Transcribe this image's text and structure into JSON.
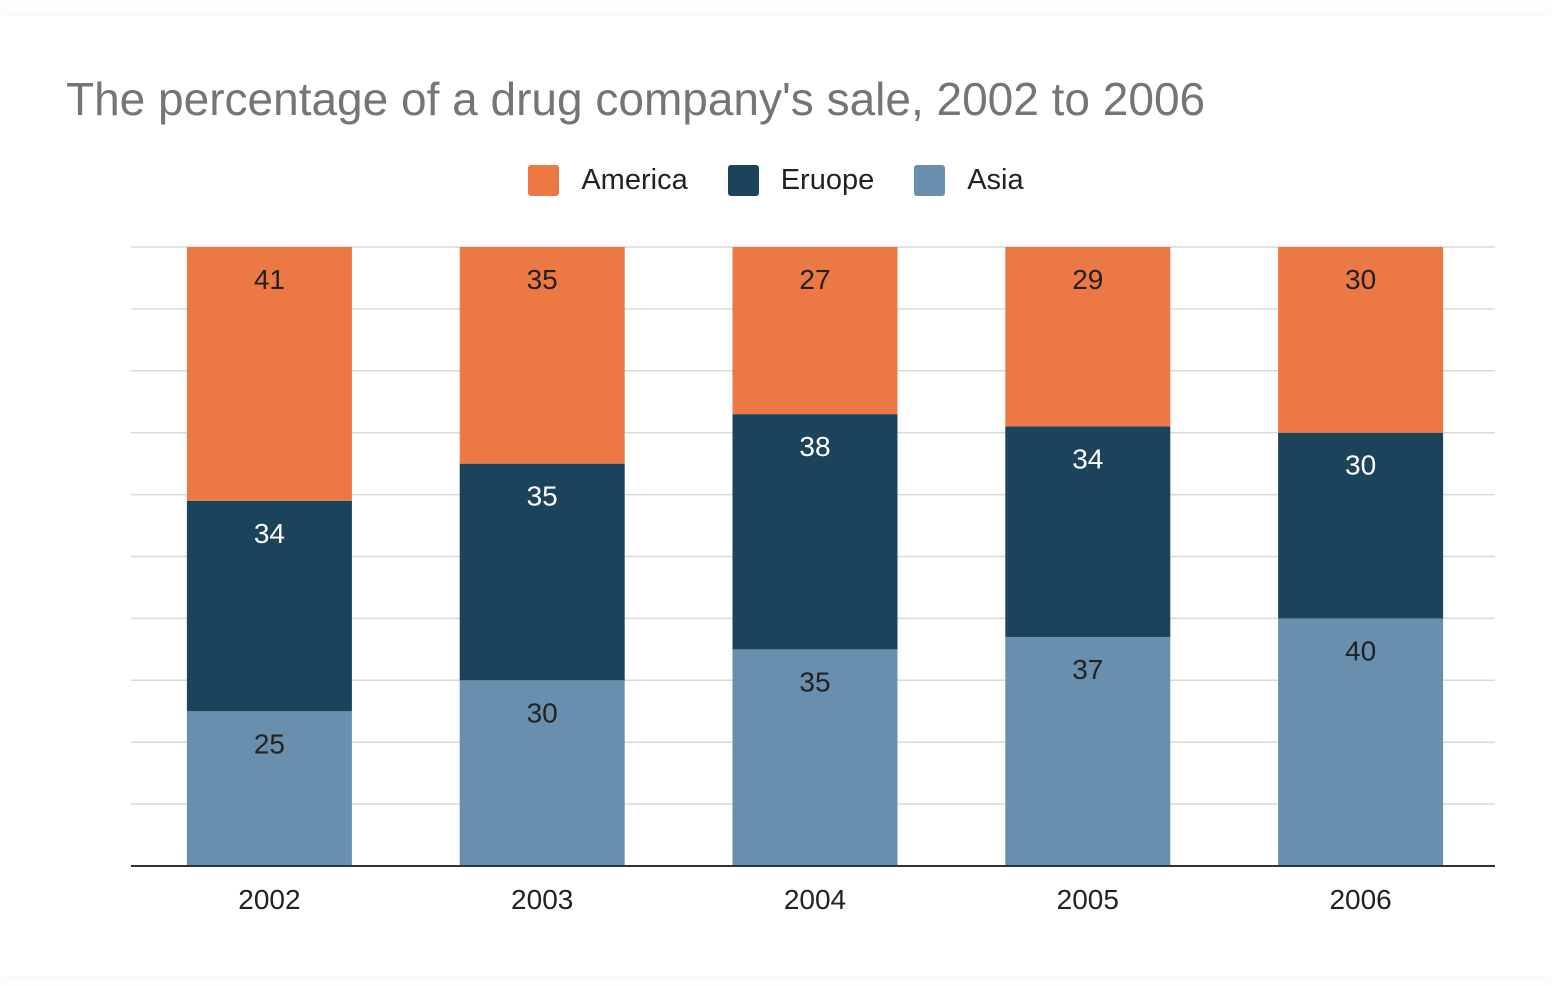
{
  "chart_data": {
    "type": "bar",
    "stacked": "percent",
    "title": "The percentage of a drug company's sale, 2002 to 2006",
    "categories": [
      "2002",
      "2003",
      "2004",
      "2005",
      "2006"
    ],
    "series": [
      {
        "name": "America",
        "color": "#EC7944",
        "label_color": "#222222",
        "values": [
          41,
          35,
          27,
          29,
          30
        ]
      },
      {
        "name": "Eruope",
        "color": "#1C435C",
        "label_color": "#FFFFFF",
        "values": [
          34,
          35,
          38,
          34,
          30
        ]
      },
      {
        "name": "Asia",
        "color": "#6890AE",
        "label_color": "#222222",
        "values": [
          25,
          30,
          35,
          37,
          40
        ]
      }
    ],
    "ylim": [
      0,
      100
    ],
    "grid": true,
    "legend": "top"
  }
}
